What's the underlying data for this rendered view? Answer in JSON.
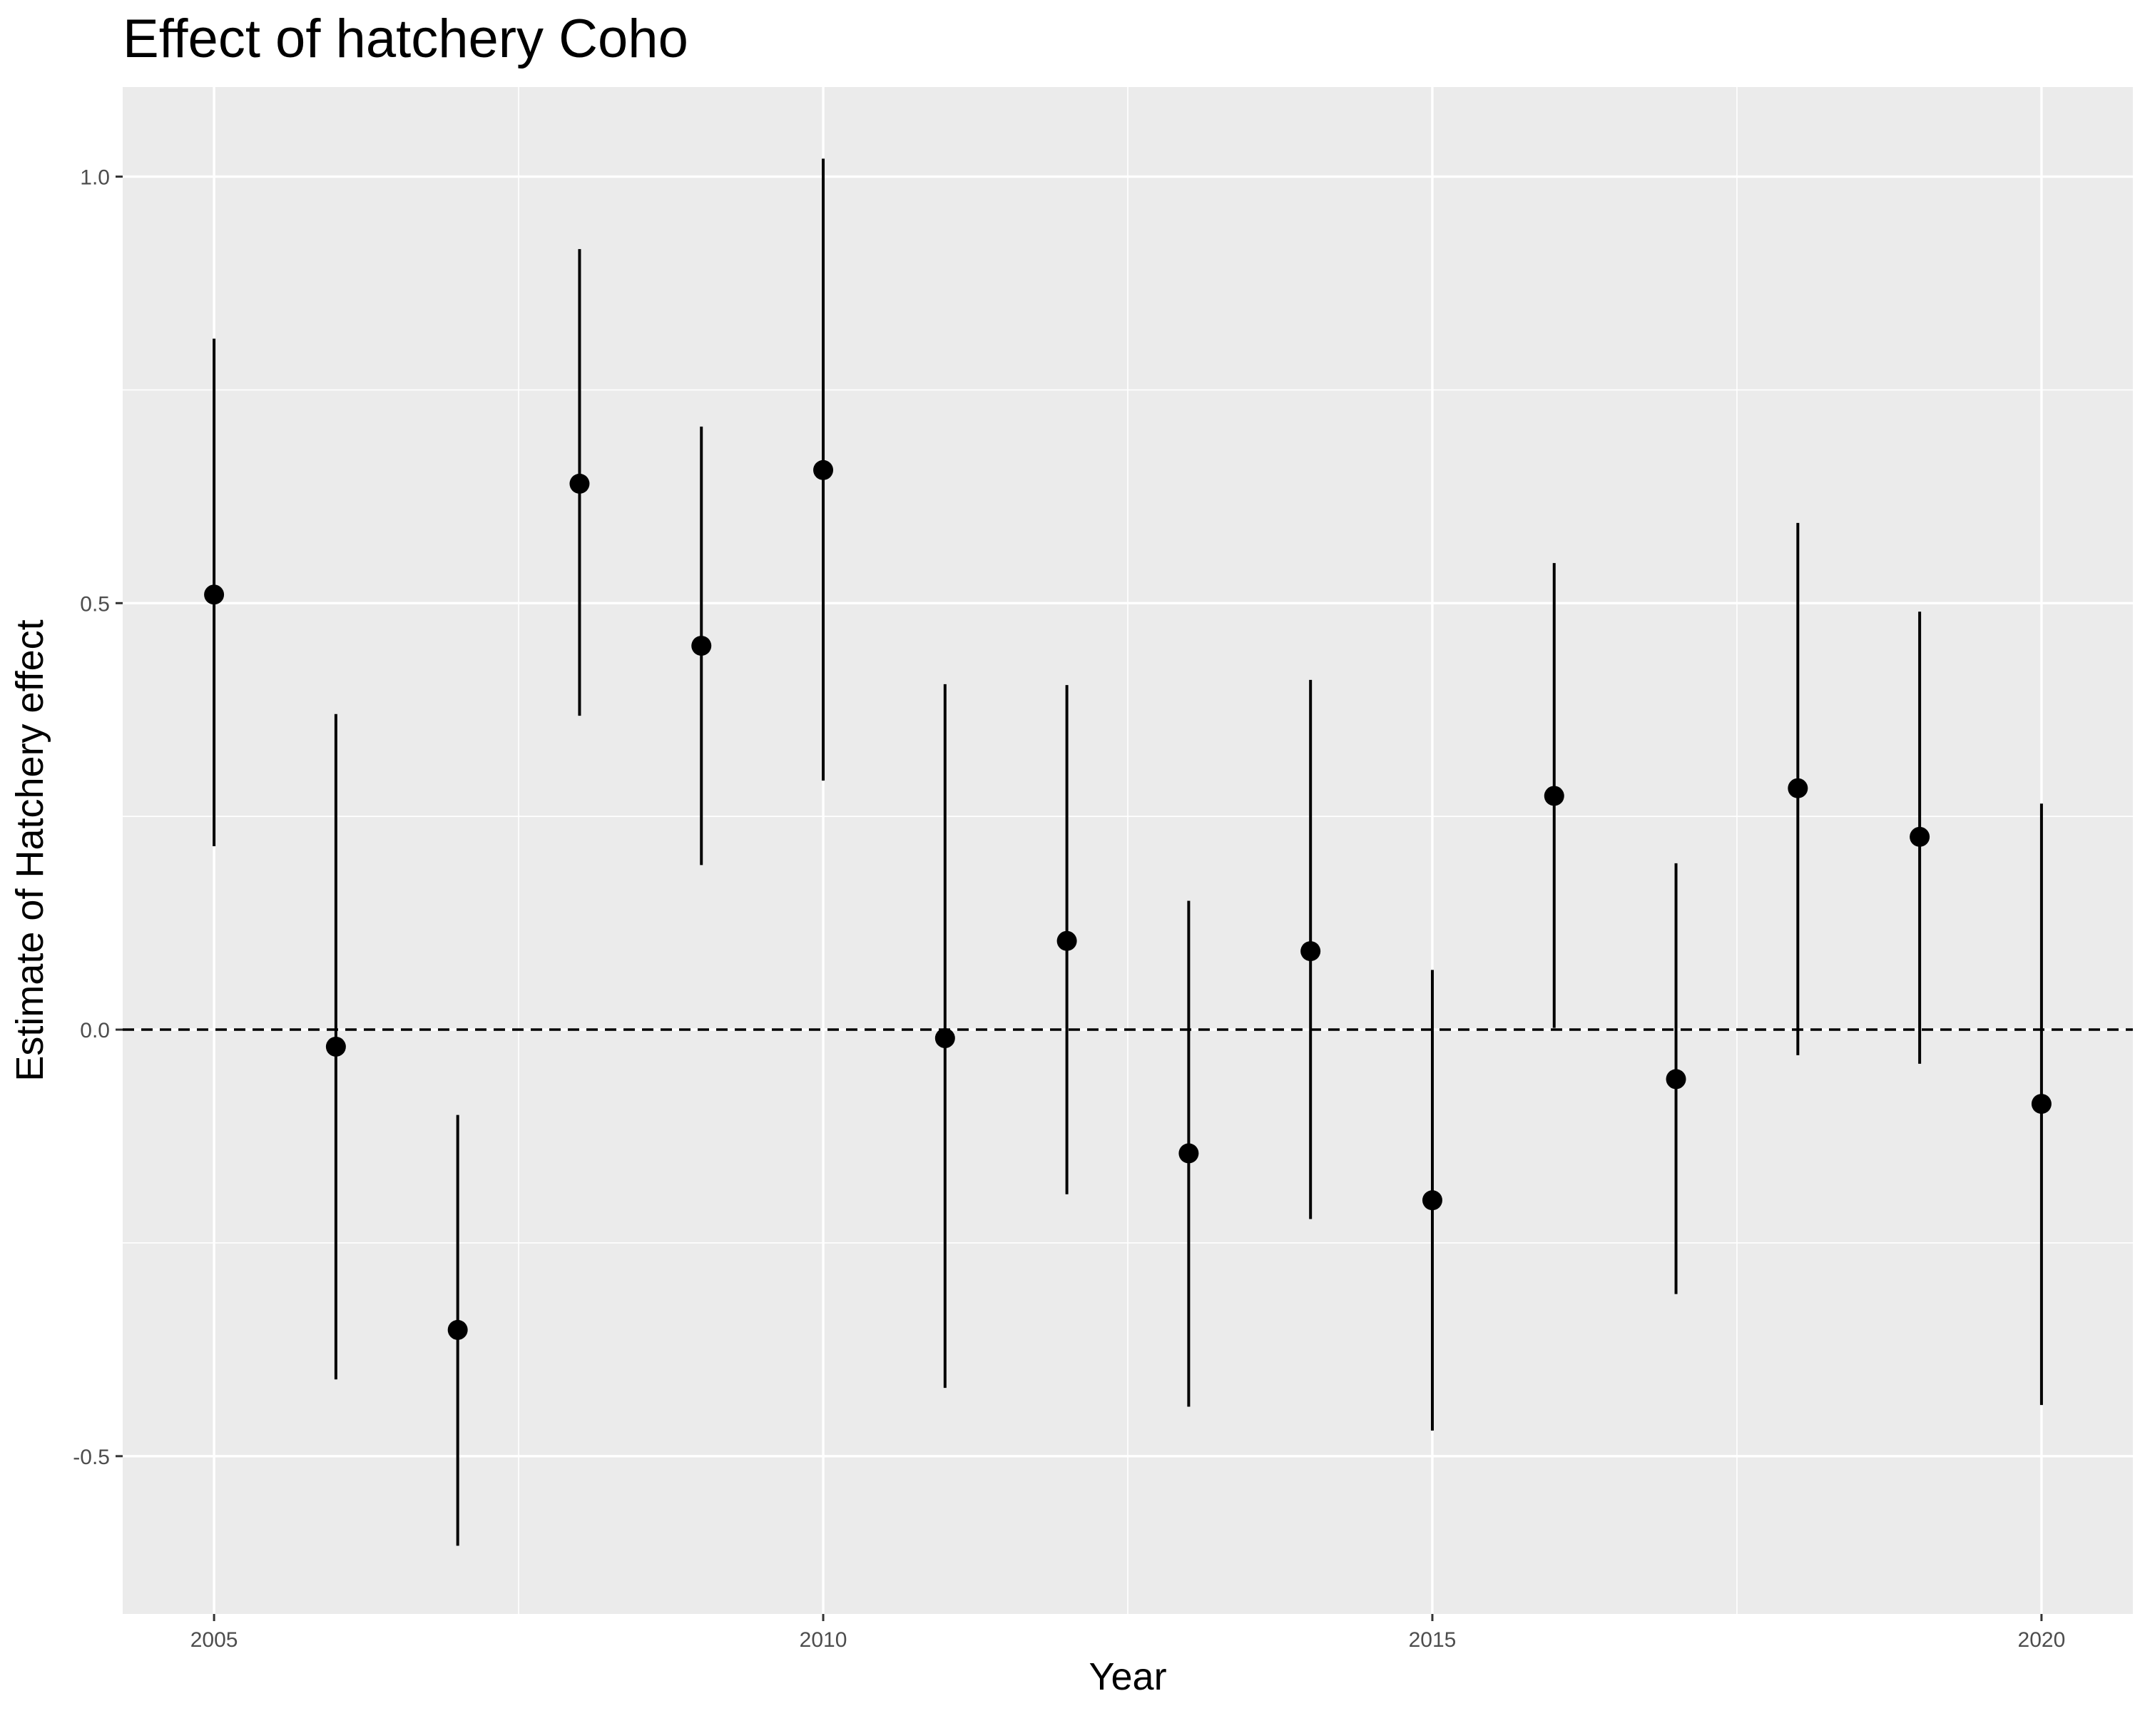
{
  "chart_data": {
    "type": "scatter",
    "title": "Effect of hatchery Coho",
    "xlabel": "Year",
    "ylabel": "Estimate of Hatchery effect",
    "xlim": [
      2004.25,
      2020.75
    ],
    "ylim": [
      -0.685,
      1.105
    ],
    "x_ticks": [
      2005,
      2010,
      2015,
      2020
    ],
    "x_tick_labels": [
      "2005",
      "2010",
      "2015",
      "2020"
    ],
    "y_ticks": [
      -0.5,
      0.0,
      0.5,
      1.0
    ],
    "y_tick_labels": [
      "-0.5",
      "0.0",
      "0.5",
      "1.0"
    ],
    "reference_line": {
      "y": 0,
      "style": "dashed"
    },
    "grid": true,
    "panel_background": "#ebebeb",
    "grid_color": "#ffffff",
    "point_color": "#000000",
    "points": [
      {
        "x": 2005,
        "y": 0.51,
        "lower": 0.215,
        "upper": 0.81
      },
      {
        "x": 2006,
        "y": -0.02,
        "lower": -0.41,
        "upper": 0.37
      },
      {
        "x": 2007,
        "y": -0.352,
        "lower": -0.605,
        "upper": -0.1
      },
      {
        "x": 2008,
        "y": 0.64,
        "lower": 0.368,
        "upper": 0.915
      },
      {
        "x": 2009,
        "y": 0.45,
        "lower": 0.193,
        "upper": 0.707
      },
      {
        "x": 2010,
        "y": 0.656,
        "lower": 0.292,
        "upper": 1.021
      },
      {
        "x": 2011,
        "y": -0.01,
        "lower": -0.42,
        "upper": 0.405
      },
      {
        "x": 2012,
        "y": 0.104,
        "lower": -0.193,
        "upper": 0.404
      },
      {
        "x": 2013,
        "y": -0.145,
        "lower": -0.442,
        "upper": 0.151
      },
      {
        "x": 2014,
        "y": 0.092,
        "lower": -0.222,
        "upper": 0.41
      },
      {
        "x": 2015,
        "y": -0.2,
        "lower": -0.47,
        "upper": 0.07
      },
      {
        "x": 2016,
        "y": 0.274,
        "lower": 0.002,
        "upper": 0.547
      },
      {
        "x": 2017,
        "y": -0.058,
        "lower": -0.31,
        "upper": 0.195
      },
      {
        "x": 2018,
        "y": 0.283,
        "lower": -0.03,
        "upper": 0.594
      },
      {
        "x": 2019,
        "y": 0.226,
        "lower": -0.04,
        "upper": 0.49
      },
      {
        "x": 2020,
        "y": -0.087,
        "lower": -0.44,
        "upper": 0.265
      }
    ]
  }
}
